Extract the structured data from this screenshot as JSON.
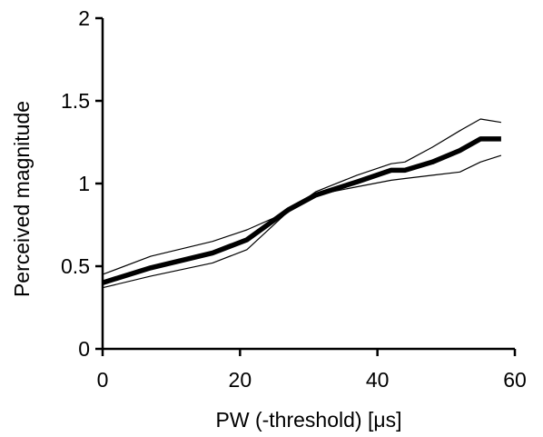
{
  "chart_data": {
    "type": "line",
    "title": "",
    "xlabel": "PW (-threshold)  [μs]",
    "ylabel": "Perceived  magnitude",
    "xlim": [
      0,
      60
    ],
    "ylim": [
      0,
      2
    ],
    "x_ticks": [
      "0",
      "20",
      "40",
      "60"
    ],
    "y_ticks": [
      "0",
      "0.5",
      "1",
      "1.5",
      "2"
    ],
    "grid": false,
    "legend": "none",
    "series": [
      {
        "role": "mean",
        "color": "#000000",
        "x": [
          0,
          7,
          16,
          21,
          27,
          31,
          37,
          42,
          44,
          48,
          52,
          55,
          58
        ],
        "y": [
          0.4,
          0.49,
          0.58,
          0.66,
          0.84,
          0.93,
          1.01,
          1.08,
          1.08,
          1.13,
          1.2,
          1.27,
          1.27
        ]
      },
      {
        "role": "upper-bound",
        "color": "#000000",
        "x": [
          0,
          7,
          16,
          21,
          27,
          31,
          37,
          42,
          44,
          48,
          52,
          55,
          58
        ],
        "y": [
          0.45,
          0.56,
          0.65,
          0.72,
          0.83,
          0.95,
          1.05,
          1.12,
          1.13,
          1.22,
          1.32,
          1.39,
          1.37
        ]
      },
      {
        "role": "lower-bound",
        "color": "#000000",
        "x": [
          0,
          7,
          16,
          21,
          27,
          31,
          37,
          42,
          44,
          48,
          52,
          55,
          58
        ],
        "y": [
          0.37,
          0.44,
          0.52,
          0.6,
          0.83,
          0.93,
          0.98,
          1.02,
          1.03,
          1.05,
          1.07,
          1.13,
          1.17
        ]
      }
    ]
  }
}
